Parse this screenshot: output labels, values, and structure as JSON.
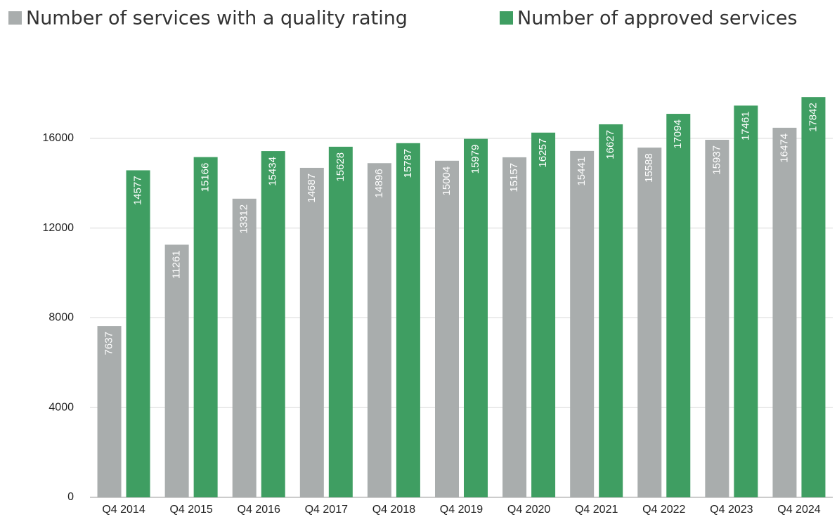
{
  "chart_data": {
    "type": "bar",
    "categories": [
      "Q4 2014",
      "Q4 2015",
      "Q4 2016",
      "Q4 2017",
      "Q4 2018",
      "Q4 2019",
      "Q4 2020",
      "Q4 2021",
      "Q4 2022",
      "Q4 2023",
      "Q4 2024"
    ],
    "series": [
      {
        "name": "Number of services with a quality rating",
        "color": "#a9adad",
        "values": [
          7637,
          11261,
          13312,
          14687,
          14896,
          15004,
          15157,
          15441,
          15588,
          15937,
          16474
        ]
      },
      {
        "name": "Number of approved services",
        "color": "#3f9e62",
        "values": [
          14577,
          15166,
          15434,
          15628,
          15787,
          15979,
          16257,
          16627,
          17094,
          17461,
          17842
        ]
      }
    ],
    "ylim": [
      0,
      18000
    ],
    "yticks": [
      0,
      4000,
      8000,
      12000,
      16000
    ],
    "grid": true
  }
}
